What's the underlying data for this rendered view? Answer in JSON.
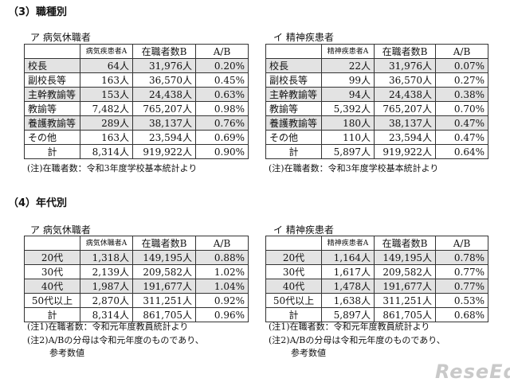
{
  "section3": {
    "title": "（3）職種別",
    "left": {
      "subtitle": "ア  病気休職者",
      "headers": [
        "",
        "病気疾患者A",
        "在職者数B",
        "A/B"
      ],
      "rows": [
        [
          "校長",
          "64人",
          "31,976人",
          "0.20%"
        ],
        [
          "副校長等",
          "163人",
          "36,570人",
          "0.45%"
        ],
        [
          "主幹教諭等",
          "153人",
          "24,438人",
          "0.63%"
        ],
        [
          "教諭等",
          "7,482人",
          "765,207人",
          "0.98%"
        ],
        [
          "養護教諭等",
          "289人",
          "38,137人",
          "0.76%"
        ],
        [
          "その他",
          "163人",
          "23,594人",
          "0.69%"
        ]
      ],
      "total": [
        "計",
        "8,314人",
        "919,922人",
        "0.90%"
      ],
      "note": "(注)在職者数：令和3年度学校基本統計より"
    },
    "right": {
      "subtitle": "イ  精神疾患者",
      "headers": [
        "",
        "精神疾患者A",
        "在職者数B",
        "A/B"
      ],
      "rows": [
        [
          "校長",
          "22人",
          "31,976人",
          "0.07%"
        ],
        [
          "副校長等",
          "99人",
          "36,570人",
          "0.27%"
        ],
        [
          "主幹教諭等",
          "94人",
          "24,438人",
          "0.38%"
        ],
        [
          "教諭等",
          "5,392人",
          "765,207人",
          "0.70%"
        ],
        [
          "養護教諭等",
          "180人",
          "38,137人",
          "0.47%"
        ],
        [
          "その他",
          "110人",
          "23,594人",
          "0.47%"
        ]
      ],
      "total": [
        "計",
        "5,897人",
        "919,922人",
        "0.64%"
      ],
      "note": "(注)在職者数：令和3年度学校基本統計より"
    }
  },
  "section4": {
    "title": "（4）年代別",
    "left": {
      "subtitle": "ア  病気休職者",
      "headers": [
        "",
        "病気休職者A",
        "在職者数B",
        "A/B"
      ],
      "rows": [
        [
          "20代",
          "1,318人",
          "149,195人",
          "0.88%"
        ],
        [
          "30代",
          "2,139人",
          "209,582人",
          "1.02%"
        ],
        [
          "40代",
          "1,987人",
          "191,677人",
          "1.04%"
        ],
        [
          "50代以上",
          "2,870人",
          "311,251人",
          "0.92%"
        ]
      ],
      "total": [
        "計",
        "8,314人",
        "861,705人",
        "0.96%"
      ],
      "note1": "(注1)在職者数：令和元年度教員統計より",
      "note2a": "(注2)A/Bの分母は令和元年度のものであり、",
      "note2b": "参考数値"
    },
    "right": {
      "subtitle": "イ  精神疾患者",
      "headers": [
        "",
        "精神疾患者A",
        "在職者数B",
        "A/B"
      ],
      "rows": [
        [
          "20代",
          "1,164人",
          "149,195人",
          "0.78%"
        ],
        [
          "30代",
          "1,617人",
          "209,582人",
          "0.77%"
        ],
        [
          "40代",
          "1,478人",
          "191,677人",
          "0.77%"
        ],
        [
          "50代以上",
          "1,638人",
          "311,251人",
          "0.53%"
        ]
      ],
      "total": [
        "計",
        "5,897人",
        "861,705人",
        "0.68%"
      ],
      "note1": "(注1)在職者数：令和元年度教員統計より",
      "note2a": "(注2)A/Bの分母は令和元年度のものであり、",
      "note2b": "参考数値"
    }
  },
  "watermark": "ReseEd"
}
